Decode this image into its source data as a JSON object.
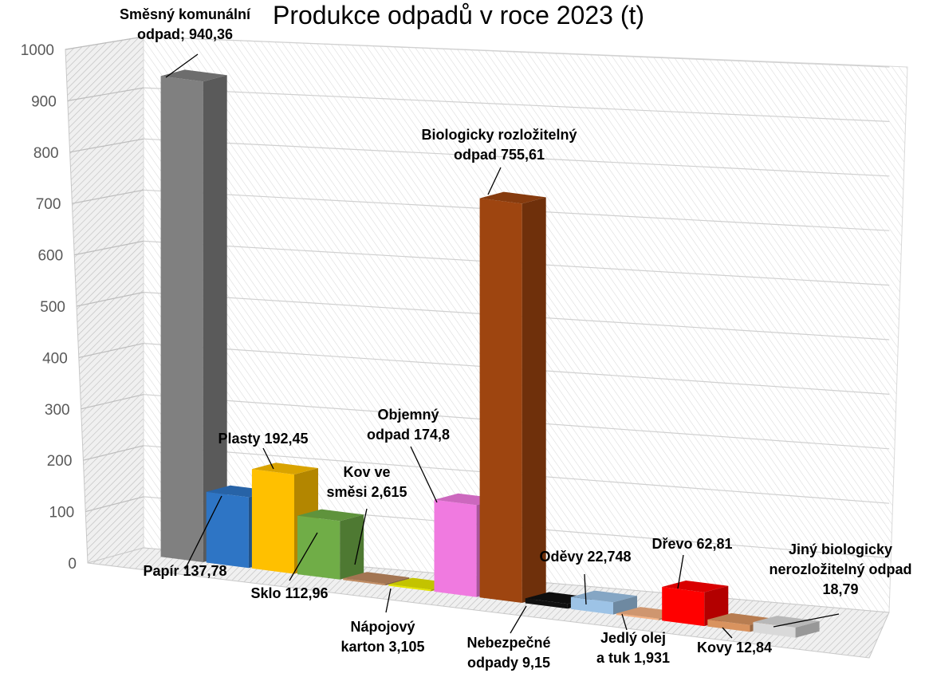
{
  "chart_data": {
    "type": "bar",
    "title": "Produkce odpadů v roce 2023 (t)",
    "xlabel": "",
    "ylabel": "",
    "ylim": [
      0,
      1000
    ],
    "yticks": [
      "0",
      "100",
      "200",
      "300",
      "400",
      "500",
      "600",
      "700",
      "800",
      "900",
      "1000"
    ],
    "grid": true,
    "legend": "none",
    "categories": [
      {
        "label": [
          "Směsný komunální",
          "odpad; 940,36"
        ],
        "value": 940.36,
        "color": "#808080"
      },
      {
        "label": [
          "Papír 137,78"
        ],
        "value": 137.78,
        "color": "#2E75C5"
      },
      {
        "label": [
          "Plasty 192,45"
        ],
        "value": 192.45,
        "color": "#FFC000"
      },
      {
        "label": [
          "Sklo 112,96"
        ],
        "value": 112.96,
        "color": "#70AD47"
      },
      {
        "label": [
          "Kov ve",
          "směsi 2,615"
        ],
        "value": 2.615,
        "color": "#C08A60"
      },
      {
        "label": [
          "Nápojový",
          "karton 3,105"
        ],
        "value": 3.105,
        "color": "#E5E500"
      },
      {
        "label": [
          "Objemný",
          "odpad 174,8"
        ],
        "value": 174.8,
        "color": "#F07AE0"
      },
      {
        "label": [
          "Biologicky rozložitelný",
          "odpad 755,61"
        ],
        "value": 755.61,
        "color": "#9E4510"
      },
      {
        "label": [
          "Nebezpečné",
          "odpady 9,15"
        ],
        "value": 9.15,
        "color": "#111111"
      },
      {
        "label": [
          "Oděvy 22,748"
        ],
        "value": 22.748,
        "color": "#9DC3E6"
      },
      {
        "label": [
          "Jedlý olej",
          "a tuk 1,931"
        ],
        "value": 1.931,
        "color": "#F4B183"
      },
      {
        "label": [
          "Dřevo 62,81"
        ],
        "value": 62.81,
        "color": "#FF0000"
      },
      {
        "label": [
          "Kovy 12,84"
        ],
        "value": 12.84,
        "color": "#D9935F"
      },
      {
        "label": [
          "Jiný biologicky",
          "nerozložitelný odpad",
          "18,79"
        ],
        "value": 18.79,
        "color": "#D9D9D9"
      }
    ]
  }
}
